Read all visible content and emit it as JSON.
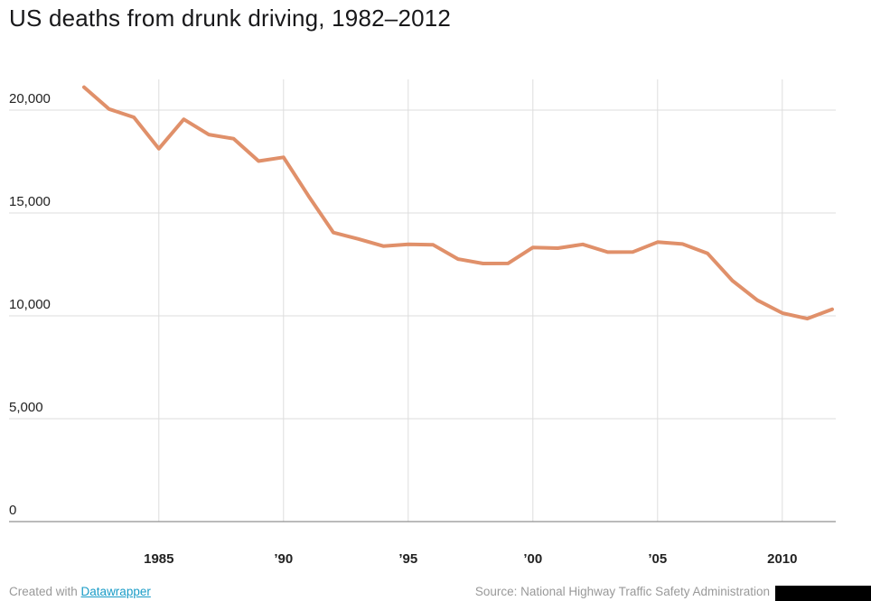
{
  "header": {
    "title": "US deaths from drunk driving, 1982–2012"
  },
  "footer": {
    "created_with": "Created with ",
    "datawrapper_link": "Datawrapper",
    "source": "Source: National Highway Traffic Safety Administration"
  },
  "colors": {
    "line": "#E0906A",
    "grid": "#DDDDDD",
    "axis": "#777777",
    "tick_label": "#222222",
    "title": "#18181A",
    "link": "#1A9CC7",
    "footer_text": "#999999"
  },
  "chart_data": {
    "type": "line",
    "title": "US deaths from drunk driving, 1982–2012",
    "xlabel": "",
    "ylabel": "",
    "ylim": [
      0,
      21500
    ],
    "grid": true,
    "legend": false,
    "x": [
      1982,
      1983,
      1984,
      1985,
      1986,
      1987,
      1988,
      1989,
      1990,
      1991,
      1992,
      1993,
      1994,
      1995,
      1996,
      1997,
      1998,
      1999,
      2000,
      2001,
      2002,
      2003,
      2004,
      2005,
      2006,
      2007,
      2008,
      2009,
      2010,
      2011,
      2012
    ],
    "values": [
      21113,
      20051,
      19650,
      18125,
      19554,
      18813,
      18611,
      17521,
      17705,
      15827,
      14049,
      13739,
      13390,
      13478,
      13451,
      12757,
      12546,
      12547,
      13324,
      13290,
      13472,
      13096,
      13099,
      13582,
      13491,
      13041,
      11711,
      10759,
      10136,
      9865,
      10322
    ],
    "x_ticks": [
      {
        "year": 1985,
        "label": "1985"
      },
      {
        "year": 1990,
        "label": "’90"
      },
      {
        "year": 1995,
        "label": "’95"
      },
      {
        "year": 2000,
        "label": "’00"
      },
      {
        "year": 2005,
        "label": "’05"
      },
      {
        "year": 2010,
        "label": "2010"
      }
    ],
    "y_ticks": [
      {
        "value": 0,
        "label": "0"
      },
      {
        "value": 5000,
        "label": "5,000"
      },
      {
        "value": 10000,
        "label": "10,000"
      },
      {
        "value": 15000,
        "label": "15,000"
      },
      {
        "value": 20000,
        "label": "20,000"
      }
    ]
  }
}
